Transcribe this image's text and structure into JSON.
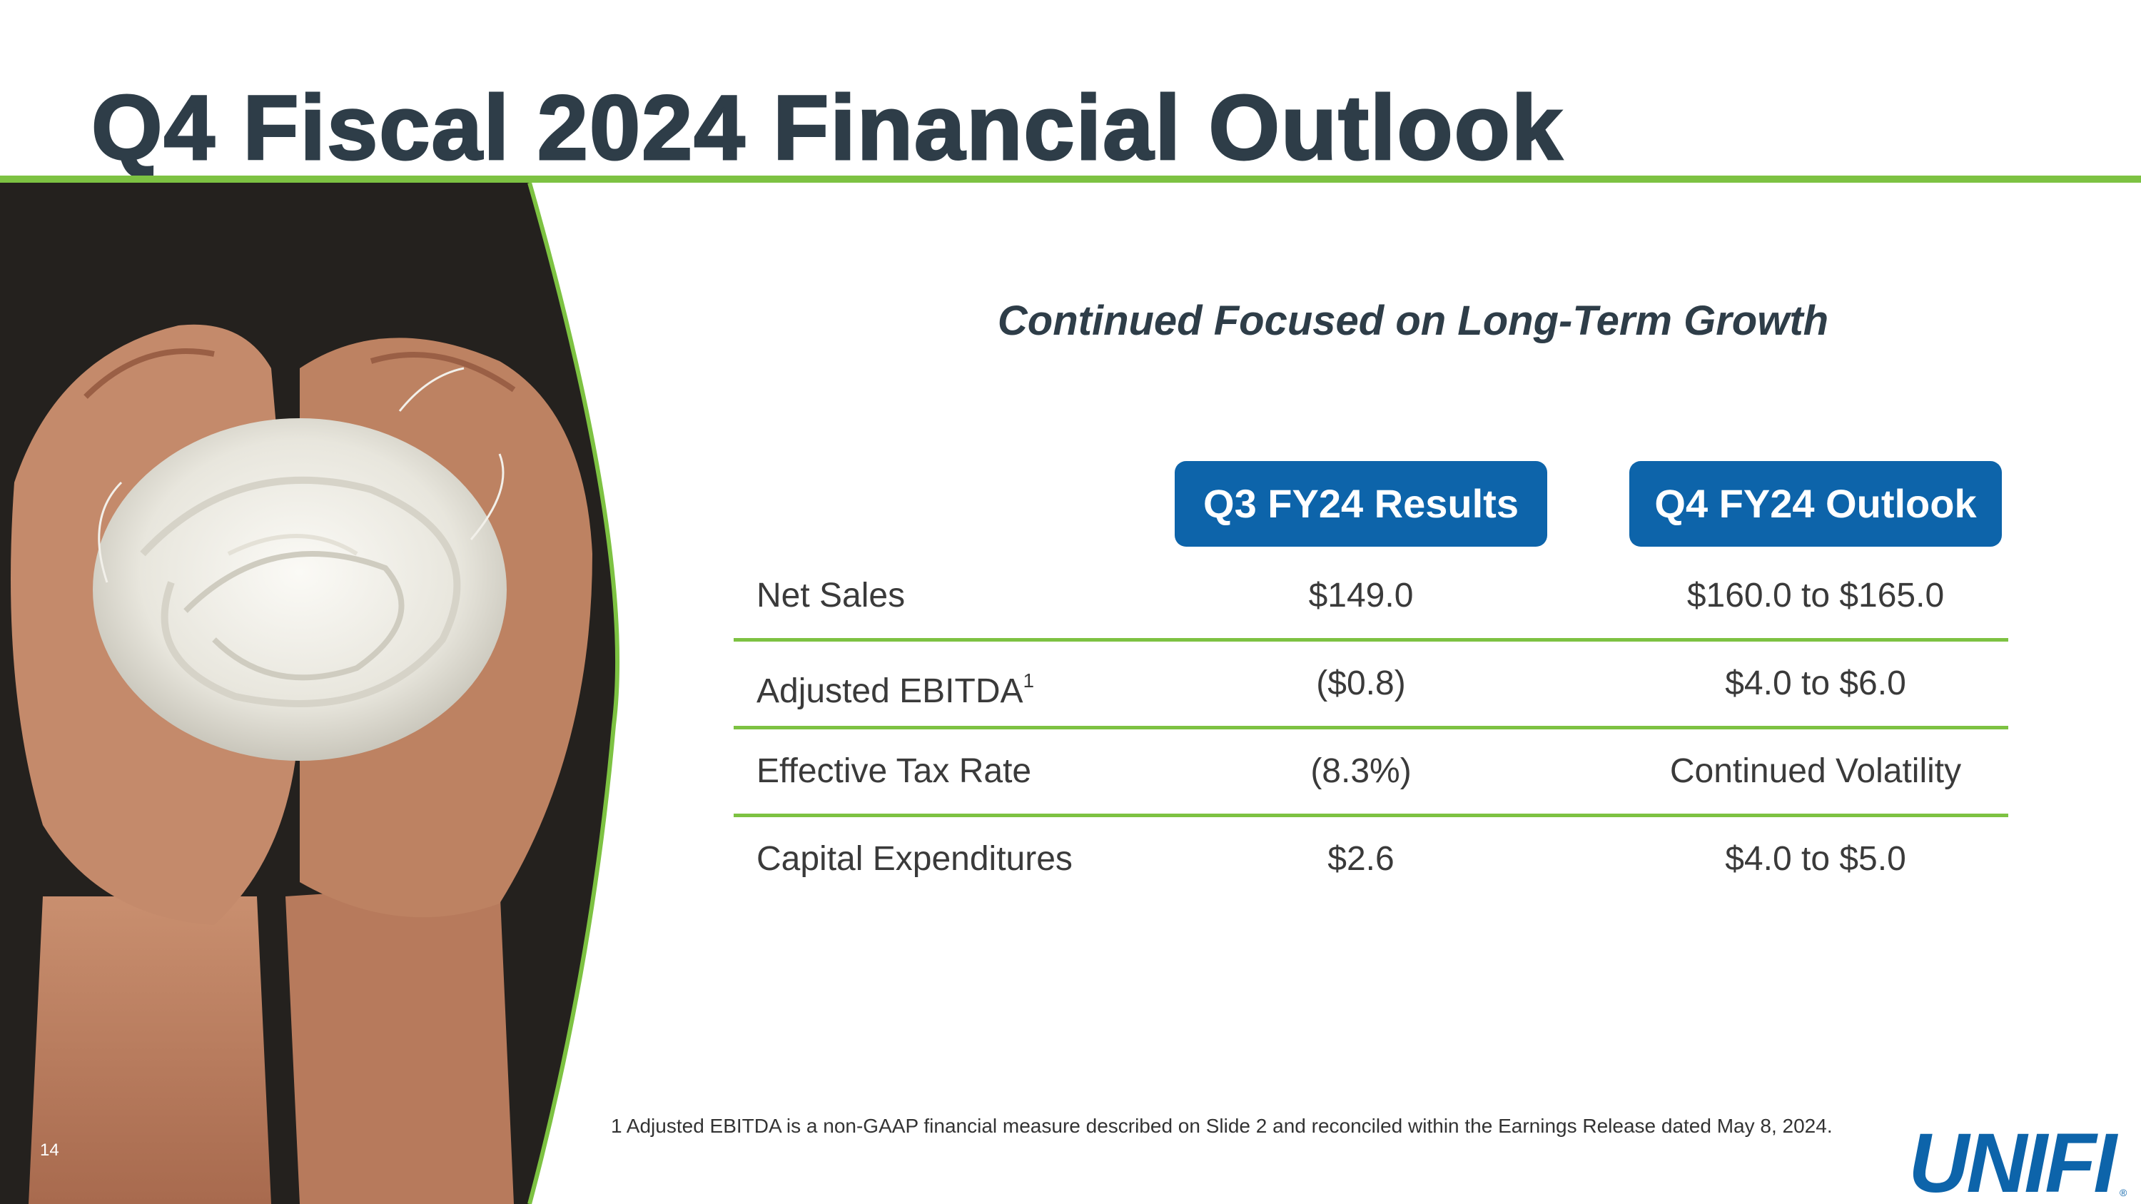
{
  "slide": {
    "title": "Q4 Fiscal 2024 Financial Outlook",
    "subtitle": "Continued Focused on Long-Term Growth",
    "page_number": "14",
    "footnote": "1 Adjusted EBITDA is a non-GAAP financial measure described on Slide 2 and reconciled within the Earnings Release dated May 8, 2024."
  },
  "table": {
    "headers": {
      "q3": "Q3 FY24 Results",
      "q4": "Q4 FY24 Outlook"
    },
    "rows": [
      {
        "label": "Net Sales",
        "sup": "",
        "q3": "$149.0",
        "q4": "$160.0 to $165.0"
      },
      {
        "label": "Adjusted EBITDA",
        "sup": "1",
        "q3": "($0.8)",
        "q4": "$4.0 to $6.0"
      },
      {
        "label": "Effective Tax Rate",
        "sup": "",
        "q3": "(8.3%)",
        "q4": "Continued Volatility"
      },
      {
        "label": "Capital Expenditures",
        "sup": "",
        "q3": "$2.6",
        "q4": "$4.0 to $5.0"
      }
    ]
  },
  "logo": {
    "text": "UNIFI",
    "registered": "®"
  },
  "colors": {
    "accent_green": "#7dc242",
    "header_blue": "#0d64aa",
    "title_text": "#2e3d48"
  },
  "image": {
    "description_icon": "hands-holding-fiber-image"
  }
}
